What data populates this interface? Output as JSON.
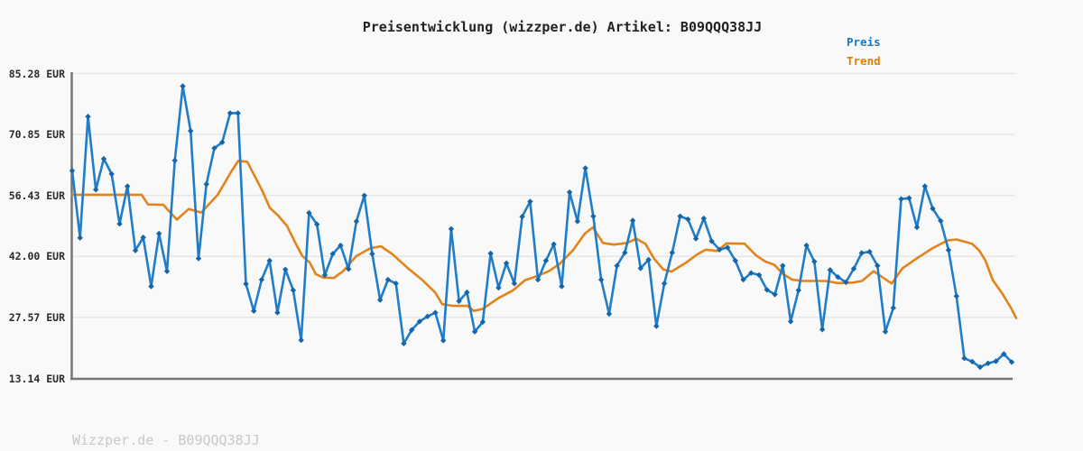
{
  "title": "Preisentwicklung (wizzper.de) Artikel: B09QQQ38JJ",
  "legend": {
    "preis": "Preis",
    "trend": "Trend"
  },
  "footer": "Wizzper.de - B09QQQ38JJ",
  "colors": {
    "background": "#f9f9f9",
    "grid": "#e6e6e6",
    "axis": "#767676",
    "price_line": "#1f7dc9",
    "price_marker": "#1565a8",
    "trend_line": "#e2831c",
    "legend_preis_text": "#1777c8",
    "legend_trend_text": "#dd7e06",
    "title_text": "#222222",
    "tick_text": "#2b2b2b",
    "footer_text": "#c8c8c8"
  },
  "chart_data": {
    "type": "line",
    "title": "Preisentwicklung (wizzper.de) Artikel: B09QQQ38JJ",
    "xlabel": "",
    "ylabel": "",
    "x_axis_labels": [],
    "grid": true,
    "legend_position": "top-right",
    "ylim": [
      13.14,
      85.28
    ],
    "y_ticks": [
      {
        "label": "85.28 EUR",
        "value": 85.28
      },
      {
        "label": "70.85 EUR",
        "value": 70.85
      },
      {
        "label": "56.43 EUR",
        "value": 56.43
      },
      {
        "label": "42.00 EUR",
        "value": 42.0
      },
      {
        "label": "27.57 EUR",
        "value": 27.57
      },
      {
        "label": "13.14 EUR",
        "value": 13.14
      }
    ],
    "series": [
      {
        "name": "Preis",
        "style": "line-with-diamond-markers",
        "values": [
          62.3,
          46.4,
          75.1,
          57.8,
          65.1,
          61.5,
          49.7,
          58.6,
          43.4,
          46.5,
          34.9,
          47.4,
          38.5,
          64.7,
          82.3,
          71.7,
          41.5,
          59.1,
          67.6,
          69.0,
          75.9,
          75.9,
          35.5,
          29.1,
          36.5,
          41.0,
          28.7,
          38.9,
          34.0,
          22.2,
          52.3,
          49.6,
          37.6,
          42.6,
          44.6,
          39.0,
          50.3,
          56.4,
          42.6,
          31.7,
          36.5,
          35.6,
          21.4,
          24.6,
          26.6,
          27.8,
          28.7,
          22.1,
          48.5,
          31.4,
          33.5,
          24.2,
          26.5,
          42.7,
          34.6,
          40.4,
          35.6,
          51.4,
          55.0,
          36.5,
          41.0,
          44.9,
          34.9,
          57.2,
          50.3,
          62.9,
          51.5,
          36.5,
          28.4,
          39.8,
          42.9,
          50.5,
          39.2,
          41.2,
          25.5,
          35.6,
          42.9,
          51.5,
          50.8,
          46.2,
          51.0,
          45.6,
          43.6,
          44.1,
          41.0,
          36.5,
          38.1,
          37.6,
          34.1,
          33.0,
          39.8,
          26.6,
          34.0,
          44.6,
          40.8,
          24.7,
          38.8,
          37.1,
          35.9,
          39.1,
          42.8,
          43.1,
          39.8,
          24.2,
          29.8,
          55.6,
          55.8,
          48.9,
          58.6,
          53.3,
          50.4,
          43.5,
          32.6,
          17.9,
          17.1,
          15.8,
          16.7,
          17.2,
          18.9,
          17.0
        ]
      },
      {
        "name": "Trend",
        "style": "smooth-line",
        "points": [
          [
            80,
            56.6
          ],
          [
            157,
            56.6
          ],
          [
            164,
            54.3
          ],
          [
            181,
            54.2
          ],
          [
            196,
            50.7
          ],
          [
            209,
            53.2
          ],
          [
            223,
            52.4
          ],
          [
            241,
            56.5
          ],
          [
            256,
            62.0
          ],
          [
            264,
            64.6
          ],
          [
            274,
            64.4
          ],
          [
            290,
            57.8
          ],
          [
            299,
            53.5
          ],
          [
            308,
            51.7
          ],
          [
            318,
            49.2
          ],
          [
            328,
            44.9
          ],
          [
            335,
            42.1
          ],
          [
            343,
            40.6
          ],
          [
            350,
            37.8
          ],
          [
            358,
            37.0
          ],
          [
            370,
            36.9
          ],
          [
            380,
            38.5
          ],
          [
            395,
            42.1
          ],
          [
            410,
            43.9
          ],
          [
            422,
            44.4
          ],
          [
            435,
            42.5
          ],
          [
            452,
            39.2
          ],
          [
            468,
            36.4
          ],
          [
            482,
            33.5
          ],
          [
            490,
            30.7
          ],
          [
            502,
            30.3
          ],
          [
            518,
            30.3
          ],
          [
            525,
            29.1
          ],
          [
            535,
            29.6
          ],
          [
            552,
            32.1
          ],
          [
            568,
            33.9
          ],
          [
            582,
            36.4
          ],
          [
            592,
            37.1
          ],
          [
            608,
            38.5
          ],
          [
            620,
            40.2
          ],
          [
            635,
            43.5
          ],
          [
            648,
            47.4
          ],
          [
            657,
            48.9
          ],
          [
            668,
            45.2
          ],
          [
            680,
            44.8
          ],
          [
            695,
            45.2
          ],
          [
            705,
            46.2
          ],
          [
            715,
            45.0
          ],
          [
            725,
            41.4
          ],
          [
            735,
            38.9
          ],
          [
            744,
            38.4
          ],
          [
            760,
            40.5
          ],
          [
            772,
            42.4
          ],
          [
            782,
            43.6
          ],
          [
            795,
            43.3
          ],
          [
            805,
            45.1
          ],
          [
            825,
            45.0
          ],
          [
            838,
            42.2
          ],
          [
            848,
            40.8
          ],
          [
            858,
            40.0
          ],
          [
            868,
            37.8
          ],
          [
            878,
            36.5
          ],
          [
            890,
            36.2
          ],
          [
            915,
            36.2
          ],
          [
            928,
            35.7
          ],
          [
            945,
            35.8
          ],
          [
            955,
            36.2
          ],
          [
            968,
            38.5
          ],
          [
            988,
            35.6
          ],
          [
            1000,
            39.2
          ],
          [
            1017,
            41.7
          ],
          [
            1033,
            43.9
          ],
          [
            1050,
            45.8
          ],
          [
            1060,
            46.0
          ],
          [
            1077,
            45.0
          ],
          [
            1085,
            43.4
          ],
          [
            1092,
            41.0
          ],
          [
            1100,
            36.4
          ],
          [
            1110,
            33.4
          ],
          [
            1120,
            29.9
          ],
          [
            1126,
            27.4
          ]
        ]
      }
    ]
  }
}
